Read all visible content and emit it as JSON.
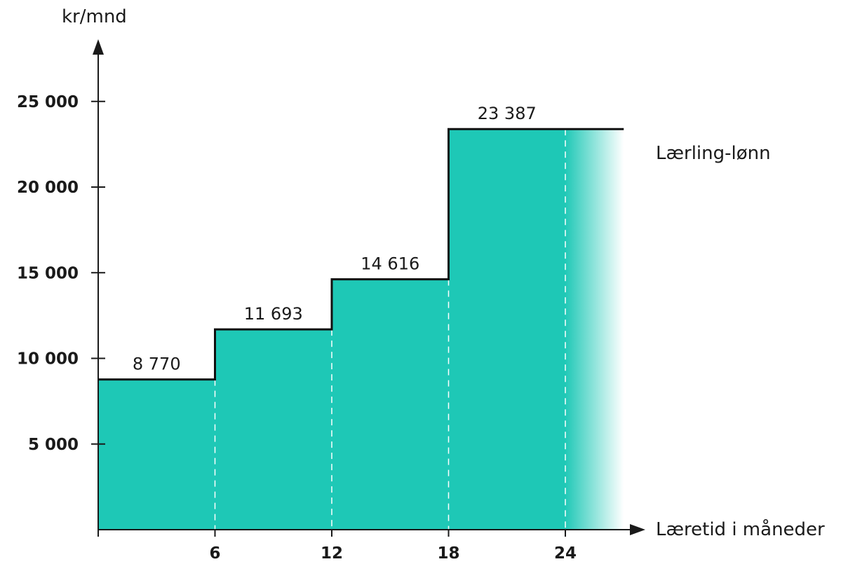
{
  "chart_data": {
    "type": "area",
    "ylabel": "kr/mnd",
    "xlabel": "Læretid i måneder",
    "xticks": [
      "6",
      "12",
      "18",
      "24"
    ],
    "yticks": [
      "5 000",
      "10 000",
      "15 000",
      "20 000",
      "25 000"
    ],
    "ylim": [
      0,
      28000
    ],
    "xlim": [
      0,
      27
    ],
    "step_end": 24,
    "grid": false,
    "fill_color": "#1ec8b6",
    "series": [
      {
        "name": "Lærling-lønn",
        "steps": [
          {
            "x_start": 0,
            "x_end": 6,
            "value": 8770,
            "label": "8 770"
          },
          {
            "x_start": 6,
            "x_end": 12,
            "value": 11693,
            "label": "11 693"
          },
          {
            "x_start": 12,
            "x_end": 18,
            "value": 14616,
            "label": "14 616"
          },
          {
            "x_start": 18,
            "x_end": 27,
            "value": 23387,
            "label": "23 387"
          }
        ]
      }
    ]
  }
}
